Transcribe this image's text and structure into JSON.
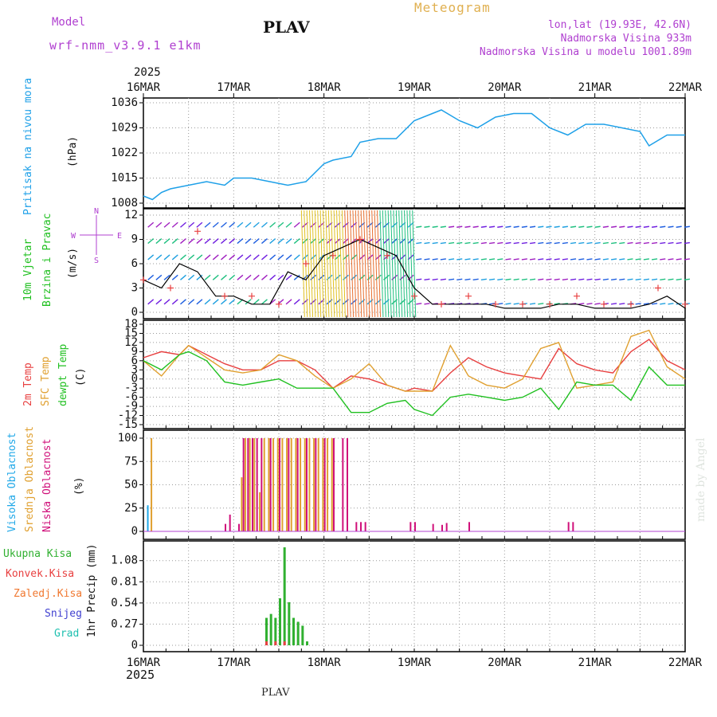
{
  "header": {
    "model_label": "Model",
    "model_name": "wrf-nmm_v3.9.1 e1km",
    "station": "PLAV",
    "meteogram": "Meteogram",
    "lonlat": "lon,lat (19.93E, 42.6N)",
    "altitude": "Nadmorska Visina 933m",
    "model_altitude": "Nadmorska Visina u modelu 1001.89m",
    "footer_station": "PLAV",
    "credit": "made by Angel"
  },
  "time_axis": {
    "year": "2025",
    "ticks": [
      "16MAR",
      "17MAR",
      "18MAR",
      "19MAR",
      "20MAR",
      "21MAR",
      "22MAR"
    ]
  },
  "colors": {
    "pressure": "#1ea0e8",
    "t2m": "#e84040",
    "tsfc": "#e0a030",
    "dewpt": "#20c020",
    "wind_line": "#000000",
    "gust_marker": "#e84040",
    "high_cloud": "#20a8e8",
    "mid_cloud": "#e0a030",
    "low_cloud": "#d0107a",
    "total_precip": "#30b030",
    "conv_precip": "#e84040",
    "frozen_precip": "#f07830",
    "snow": "#4040d0",
    "graupel": "#20c0b0"
  },
  "chart_data": [
    {
      "type": "line",
      "panel": "pressure",
      "label_lines": [
        "Pritisak na nivou mora"
      ],
      "unit": "(hPa)",
      "ylim": [
        1008,
        1036
      ],
      "yticks": [
        "1008",
        "1015",
        "1022",
        "1029",
        "1036"
      ],
      "xlim_days": [
        0,
        6
      ],
      "series": [
        {
          "key": "pressure",
          "x": [
            0,
            0.1,
            0.2,
            0.3,
            0.5,
            0.7,
            0.9,
            1.0,
            1.2,
            1.4,
            1.6,
            1.8,
            2.0,
            2.1,
            2.3,
            2.4,
            2.6,
            2.8,
            3.0,
            3.2,
            3.3,
            3.5,
            3.7,
            3.9,
            4.1,
            4.3,
            4.5,
            4.7,
            4.9,
            5.1,
            5.3,
            5.5,
            5.6,
            5.8,
            6.0
          ],
          "y": [
            1010,
            1009,
            1011,
            1012,
            1013,
            1014,
            1013,
            1015,
            1015,
            1014,
            1013,
            1014,
            1019,
            1020,
            1021,
            1025,
            1026,
            1026,
            1031,
            1033,
            1034,
            1031,
            1029,
            1032,
            1033,
            1033,
            1029,
            1027,
            1030,
            1030,
            1029,
            1028,
            1024,
            1027,
            1027
          ]
        }
      ]
    },
    {
      "type": "line",
      "panel": "wind",
      "label_lines": [
        "10m Vjetar",
        "Brzina i Pravac"
      ],
      "unit": "(m/s)",
      "compass": [
        "N",
        "S",
        "W",
        "E"
      ],
      "ylim": [
        0,
        12
      ],
      "yticks": [
        "0",
        "3",
        "6",
        "9",
        "12"
      ],
      "series": [
        {
          "key": "wind_speed",
          "x": [
            0,
            0.2,
            0.4,
            0.6,
            0.8,
            1.0,
            1.2,
            1.4,
            1.6,
            1.8,
            2.0,
            2.2,
            2.4,
            2.6,
            2.8,
            3.0,
            3.2,
            3.4,
            3.6,
            3.8,
            4.0,
            4.2,
            4.4,
            4.6,
            4.8,
            5.0,
            5.2,
            5.4,
            5.6,
            5.8,
            6.0
          ],
          "y": [
            4,
            3,
            6,
            5,
            2,
            2,
            1,
            1,
            5,
            4,
            7,
            8,
            9,
            8,
            7,
            3,
            1,
            1,
            1,
            1,
            0.5,
            0.5,
            0.5,
            1,
            1,
            0.5,
            0.5,
            0.5,
            1,
            2,
            0.5
          ]
        },
        {
          "key": "gusts",
          "x": [
            0,
            0.3,
            0.6,
            0.9,
            1.2,
            1.5,
            1.8,
            2.1,
            2.4,
            2.7,
            3.0,
            3.3,
            3.6,
            3.9,
            4.2,
            4.5,
            4.8,
            5.1,
            5.4,
            5.7,
            6.0
          ],
          "y": [
            4,
            3,
            10,
            2,
            2,
            1,
            6,
            7,
            9,
            7,
            2,
            1,
            2,
            1,
            1,
            1,
            2,
            1,
            1,
            3,
            1
          ]
        }
      ]
    },
    {
      "type": "line",
      "panel": "temperature",
      "label_lines": [
        "2m Temp",
        "SFC Temp",
        "dewpt Temp"
      ],
      "unit": "(C)",
      "ylim": [
        -15,
        18
      ],
      "yticks": [
        "-15",
        "-12",
        "-9",
        "-6",
        "-3",
        "0",
        "3",
        "6",
        "9",
        "12",
        "15",
        "18"
      ],
      "series": [
        {
          "key": "t2m",
          "x": [
            0,
            0.2,
            0.4,
            0.5,
            0.7,
            0.9,
            1.1,
            1.3,
            1.5,
            1.7,
            1.9,
            2.1,
            2.3,
            2.5,
            2.7,
            2.9,
            3.0,
            3.2,
            3.4,
            3.6,
            3.8,
            4.0,
            4.2,
            4.4,
            4.6,
            4.8,
            5.0,
            5.2,
            5.4,
            5.6,
            5.8,
            6.0
          ],
          "y": [
            7,
            9,
            8,
            11,
            8,
            5,
            3,
            3,
            6,
            6,
            3,
            -3,
            1,
            0,
            -2,
            -4,
            -3,
            -4,
            2,
            7,
            4,
            2,
            1,
            0,
            10,
            5,
            3,
            2,
            9,
            13,
            6,
            3
          ]
        },
        {
          "key": "tsfc",
          "x": [
            0,
            0.2,
            0.4,
            0.5,
            0.7,
            0.9,
            1.1,
            1.3,
            1.5,
            1.7,
            1.9,
            2.1,
            2.3,
            2.5,
            2.7,
            2.9,
            3.0,
            3.2,
            3.4,
            3.6,
            3.8,
            4.0,
            4.2,
            4.4,
            4.6,
            4.8,
            5.0,
            5.2,
            5.4,
            5.6,
            5.8,
            6.0
          ],
          "y": [
            6,
            1,
            8,
            11,
            7,
            3,
            2,
            3,
            8,
            6,
            1,
            -3,
            0,
            5,
            -2,
            -4,
            -4,
            -4,
            11,
            1,
            -2,
            -3,
            0,
            10,
            12,
            -3,
            -2,
            -1,
            14,
            16,
            4,
            0
          ]
        },
        {
          "key": "dewpt",
          "x": [
            0,
            0.2,
            0.4,
            0.5,
            0.7,
            0.9,
            1.1,
            1.3,
            1.5,
            1.7,
            1.9,
            2.1,
            2.3,
            2.5,
            2.7,
            2.9,
            3.0,
            3.2,
            3.4,
            3.6,
            3.8,
            4.0,
            4.2,
            4.4,
            4.6,
            4.8,
            5.0,
            5.2,
            5.4,
            5.6,
            5.8,
            6.0
          ],
          "y": [
            6,
            3,
            8,
            9,
            6,
            -1,
            -2,
            -1,
            0,
            -3,
            -3,
            -3,
            -11,
            -11,
            -8,
            -7,
            -10,
            -12,
            -6,
            -5,
            -6,
            -7,
            -6,
            -3,
            -10,
            -1,
            -2,
            -2,
            -7,
            4,
            -2,
            -2
          ]
        }
      ]
    },
    {
      "type": "bar",
      "panel": "clouds",
      "label_lines": [
        "Visoka Oblacnost",
        "Srednja Oblacnost",
        "Niska Oblacnost"
      ],
      "unit": "(%)",
      "ylim": [
        0,
        100
      ],
      "yticks": [
        "0",
        "25",
        "50",
        "75",
        "100"
      ],
      "series": [
        {
          "key": "high",
          "x": [
            0.04
          ],
          "values": [
            28
          ]
        },
        {
          "key": "mid",
          "x": [
            0.08,
            1.08,
            1.12,
            1.17,
            1.22,
            1.28,
            1.33,
            1.38,
            1.43,
            1.48,
            1.53,
            1.58,
            1.63,
            1.68,
            1.73,
            1.78,
            1.83,
            1.88,
            1.93,
            1.98,
            2.03,
            2.08
          ],
          "values": [
            100,
            58,
            100,
            100,
            100,
            42,
            100,
            100,
            100,
            100,
            100,
            100,
            100,
            100,
            100,
            100,
            100,
            100,
            100,
            100,
            100,
            100
          ]
        },
        {
          "key": "low",
          "x": [
            0.9,
            0.95,
            1.05,
            1.1,
            1.15,
            1.2,
            1.25,
            1.3,
            1.4,
            1.5,
            1.6,
            1.7,
            1.8,
            1.9,
            2.0,
            2.1,
            2.2,
            2.25,
            2.35,
            2.4,
            2.45,
            2.95,
            3.0,
            3.2,
            3.3,
            3.35,
            3.6,
            4.7,
            4.75
          ],
          "values": [
            8,
            18,
            8,
            100,
            100,
            100,
            100,
            100,
            100,
            100,
            100,
            100,
            100,
            100,
            100,
            100,
            100,
            100,
            10,
            10,
            10,
            10,
            10,
            8,
            7,
            9,
            10,
            10,
            10
          ]
        }
      ]
    },
    {
      "type": "bar",
      "panel": "precip",
      "label_lines": [
        "Ukupna Kisa",
        "Konvek.Kisa",
        "Zaledj.Kisa",
        "Snijeg",
        "Grad"
      ],
      "unit": "1hr Precip (mm)",
      "ylim": [
        0,
        1.25
      ],
      "yticks": [
        "0",
        "0.27",
        "0.54",
        "0.81",
        "1.08"
      ],
      "series": [
        {
          "key": "total",
          "x": [
            1.35,
            1.4,
            1.45,
            1.5,
            1.55,
            1.6,
            1.65,
            1.7,
            1.75,
            1.8
          ],
          "values": [
            0.35,
            0.4,
            0.35,
            0.6,
            1.25,
            0.55,
            0.35,
            0.3,
            0.25,
            0.05
          ]
        },
        {
          "key": "convective",
          "x": [
            1.35,
            1.45,
            1.55
          ],
          "values": [
            0.05,
            0.05,
            0.05
          ]
        }
      ]
    }
  ]
}
